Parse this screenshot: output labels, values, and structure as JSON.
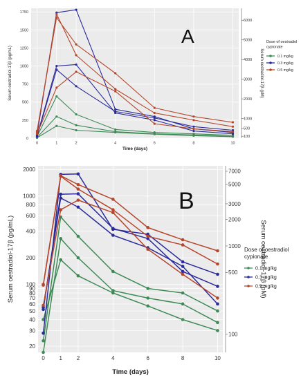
{
  "chart_data": [
    {
      "panel": "A",
      "type": "line",
      "x": [
        0,
        1,
        2,
        4,
        6,
        8,
        10
      ],
      "xlabel": "Time (days)",
      "ylabel": "Serum oestradiol-17β (pg/mL)",
      "y2label": "Serum oestradiol-17β (pM)",
      "xlim": [
        -0.3,
        10.3
      ],
      "ylim": [
        0,
        1800
      ],
      "x_ticks": [
        "0",
        "1",
        "2",
        "4",
        "6",
        "8",
        "10"
      ],
      "y_ticks": [
        "0",
        "250",
        "500",
        "750",
        "1000",
        "1250",
        "1500",
        "1750"
      ],
      "y2_ticks": [
        "100",
        "500",
        "1000",
        "2000",
        "3000",
        "4000",
        "5000",
        "6000"
      ],
      "grid": true,
      "legend_title": "Dose of oestradiol cypionate",
      "legend_position": "right",
      "legend_entries": [
        "0.1 mg/kg",
        "0.3 mg/kg",
        "0.5 mg/kg"
      ],
      "series": [
        {
          "group": "0.1 mg/kg",
          "color": "#3d8a55",
          "values": [
            20,
            580,
            330,
            120,
            80,
            60,
            40
          ]
        },
        {
          "group": "0.1 mg/kg",
          "color": "#3d8a55",
          "values": [
            10,
            300,
            180,
            90,
            60,
            45,
            25
          ]
        },
        {
          "group": "0.1 mg/kg",
          "color": "#3d8a55",
          "values": [
            5,
            170,
            110,
            80,
            55,
            35,
            20
          ]
        },
        {
          "group": "0.3 mg/kg",
          "color": "#2a2a9a",
          "values": [
            40,
            1740,
            1780,
            400,
            300,
            130,
            80
          ]
        },
        {
          "group": "0.3 mg/kg",
          "color": "#2a2a9a",
          "values": [
            30,
            1000,
            1020,
            350,
            250,
            100,
            60
          ]
        },
        {
          "group": "0.3 mg/kg",
          "color": "#2a2a9a",
          "values": [
            20,
            950,
            720,
            370,
            280,
            160,
            110
          ]
        },
        {
          "group": "0.5 mg/kg",
          "color": "#b5462c",
          "values": [
            100,
            1670,
            1300,
            900,
            420,
            300,
            220
          ]
        },
        {
          "group": "0.5 mg/kg",
          "color": "#b5462c",
          "values": [
            80,
            1720,
            1150,
            680,
            350,
            250,
            160
          ]
        },
        {
          "group": "0.5 mg/kg",
          "color": "#b5462c",
          "values": [
            60,
            700,
            920,
            650,
            200,
            130,
            90
          ]
        }
      ]
    },
    {
      "panel": "B",
      "type": "line",
      "y_scale": "log",
      "x": [
        0,
        1,
        2,
        4,
        6,
        8,
        10
      ],
      "xlabel": "Time (days)",
      "ylabel": "Serum oestradiol-17β (pg/mL)",
      "y2label": "Serum oestradiol-17β (pM)",
      "xlim": [
        -0.3,
        10.3
      ],
      "ylim": [
        17,
        2200
      ],
      "x_ticks": [
        "0",
        "1",
        "2",
        "4",
        "6",
        "8",
        "10"
      ],
      "y_ticks": [
        "20",
        "30",
        "40",
        "50",
        "60",
        "70",
        "80",
        "90",
        "100",
        "200",
        "400",
        "600",
        "800",
        "1000",
        "2000"
      ],
      "y2_ticks": [
        "100",
        "500",
        "1000",
        "2000",
        "3000",
        "5000",
        "7000"
      ],
      "grid": true,
      "legend_title": "Dose of oestradiol cypionate",
      "legend_position": "right",
      "legend_entries": [
        "0.1 mg/kg",
        "0.3 mg/kg",
        "0.5 mg/kg"
      ],
      "series": [
        {
          "group": "0.1 mg/kg",
          "color": "#3d8a55",
          "values": [
            23,
            580,
            350,
            140,
            90,
            80,
            50
          ]
        },
        {
          "group": "0.1 mg/kg",
          "color": "#3d8a55",
          "values": [
            17,
            330,
            200,
            85,
            70,
            60,
            37
          ]
        },
        {
          "group": "0.1 mg/kg",
          "color": "#3d8a55",
          "values": [
            40,
            190,
            125,
            80,
            57,
            40,
            30
          ]
        },
        {
          "group": "0.3 mg/kg",
          "color": "#2a2a9a",
          "values": [
            28,
            1760,
            1780,
            420,
            370,
            180,
            130
          ]
        },
        {
          "group": "0.3 mg/kg",
          "color": "#2a2a9a",
          "values": [
            52,
            1050,
            1060,
            430,
            330,
            140,
            95
          ]
        },
        {
          "group": "0.3 mg/kg",
          "color": "#2a2a9a",
          "values": [
            55,
            950,
            750,
            360,
            260,
            160,
            60
          ]
        },
        {
          "group": "0.5 mg/kg",
          "color": "#b5462c",
          "values": [
            100,
            1700,
            1350,
            920,
            440,
            320,
            240
          ]
        },
        {
          "group": "0.5 mg/kg",
          "color": "#b5462c",
          "values": [
            98,
            1680,
            1200,
            700,
            350,
            280,
            170
          ]
        },
        {
          "group": "0.5 mg/kg",
          "color": "#b5462c",
          "values": [
            58,
            700,
            900,
            650,
            250,
            130,
            70
          ]
        }
      ]
    }
  ],
  "panel_labels": [
    "A",
    "B"
  ]
}
